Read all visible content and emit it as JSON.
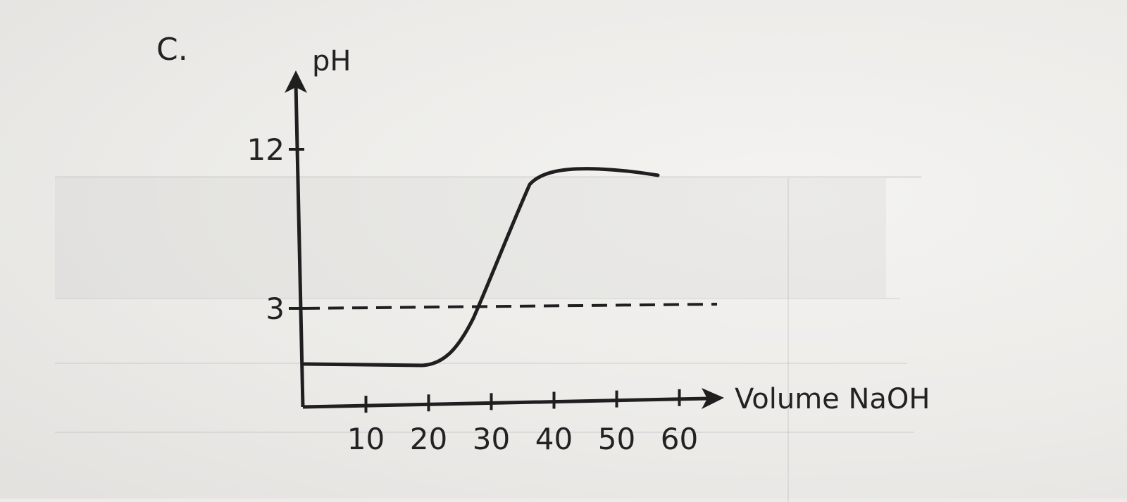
{
  "question": {
    "part_label": "C."
  },
  "chart_data": {
    "type": "line",
    "xlabel": "Volume NaOH",
    "ylabel": "pH",
    "x_ticks": [
      10,
      20,
      30,
      40,
      50,
      60
    ],
    "y_ticks": [
      3,
      12
    ],
    "xlim": [
      0,
      60
    ],
    "ylim": [
      0,
      12
    ],
    "reference_line": {
      "y": 3,
      "style": "dashed"
    },
    "series": [
      {
        "x": [
          0,
          10,
          20,
          22,
          25,
          30,
          35,
          37,
          40,
          45,
          50,
          55
        ],
        "y": [
          0.6,
          0.6,
          0.6,
          1.0,
          1.9,
          3.7,
          6.9,
          11.1,
          11.6,
          11.85,
          11.8,
          11.7
        ]
      }
    ],
    "grid": false,
    "legend": "none"
  }
}
